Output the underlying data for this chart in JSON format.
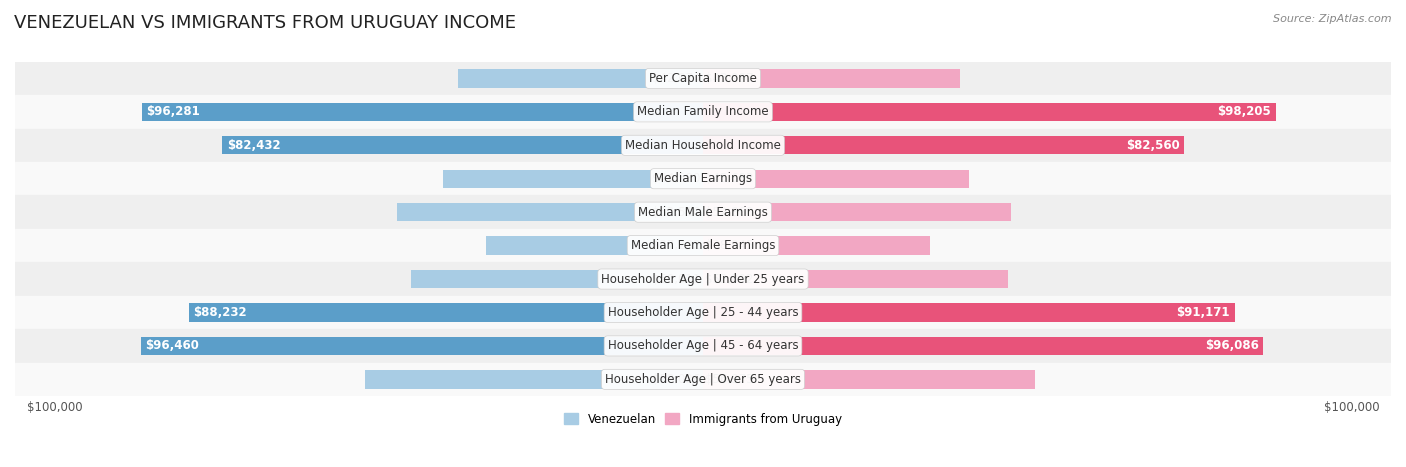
{
  "title": "VENEZUELAN VS IMMIGRANTS FROM URUGUAY INCOME",
  "source": "Source: ZipAtlas.com",
  "categories": [
    "Per Capita Income",
    "Median Family Income",
    "Median Household Income",
    "Median Earnings",
    "Median Male Earnings",
    "Median Female Earnings",
    "Householder Age | Under 25 years",
    "Householder Age | 25 - 44 years",
    "Householder Age | 45 - 64 years",
    "Householder Age | Over 65 years"
  ],
  "venezuelan_values": [
    42074,
    96281,
    82432,
    44580,
    52510,
    37282,
    50011,
    88232,
    96460,
    58026
  ],
  "uruguay_values": [
    43997,
    98205,
    82560,
    45682,
    52860,
    38945,
    52302,
    91171,
    96086,
    56975
  ],
  "venezuelan_color_light": "#a8cce4",
  "venezuelan_color_dark": "#5b9ec9",
  "uruguay_color_light": "#f2a7c3",
  "uruguay_color_dark": "#e8537a",
  "background_row_light": "#efefef",
  "background_row_white": "#f9f9f9",
  "max_value": 100000,
  "x_label_left": "$100,000",
  "x_label_right": "$100,000",
  "legend_venezuelan": "Venezuelan",
  "legend_uruguay": "Immigrants from Uruguay",
  "title_fontsize": 13,
  "label_fontsize": 8.5,
  "tick_fontsize": 8.5,
  "dark_threshold": 75000
}
